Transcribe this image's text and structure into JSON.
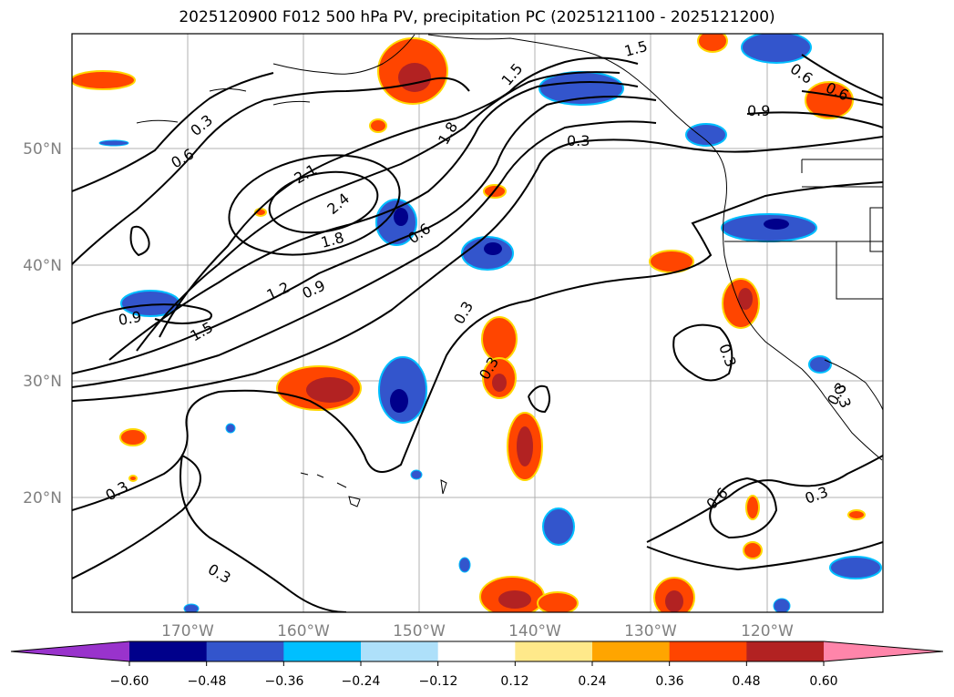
{
  "title": "2025120900 F012 500 hPa PV, precipitation PC (2025121100 - 2025121200)",
  "lat_labels": [
    "50°N",
    "40°N",
    "30°N",
    "20°N"
  ],
  "lon_labels": [
    "170°W",
    "160°W",
    "150°W",
    "140°W",
    "130°W",
    "120°W"
  ],
  "contour_labels": [
    "0.3",
    "0.6",
    "2.1",
    "2.4",
    "1.8",
    "1.2",
    "0.9",
    "1.5",
    "0.9",
    "0.6",
    "1.8",
    "1.5",
    "1.5",
    "0.6",
    "0.6",
    "0.9",
    "0.3",
    "0.3",
    "0.3",
    "0.3",
    "0.3",
    "0.3",
    "0.3",
    "0.6",
    "0.3",
    "0.3"
  ],
  "colorbar": {
    "tick_labels": [
      "−0.60",
      "−0.48",
      "−0.36",
      "−0.24",
      "−0.12",
      "0.12",
      "0.24",
      "0.36",
      "0.48",
      "0.60"
    ],
    "colors": [
      "#9933cc",
      "#00008b",
      "#3355cc",
      "#00bfff",
      "#aee0fa",
      "#ffffff",
      "#ffe98a",
      "#ffa500",
      "#ff4500",
      "#b22222",
      "#ff85aa"
    ]
  }
}
